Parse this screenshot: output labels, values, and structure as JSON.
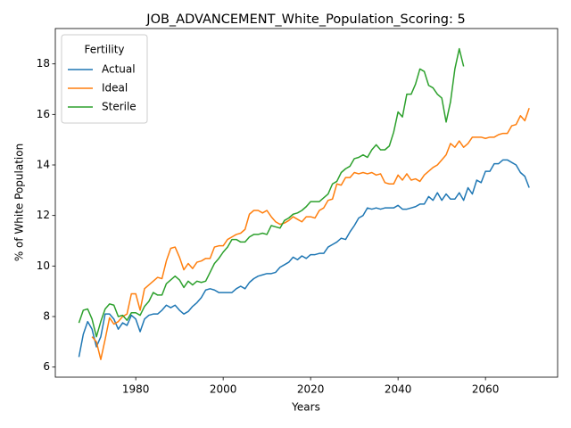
{
  "chart_data": {
    "type": "line",
    "title": "JOB_ADVANCEMENT_White_Population_Scoring: 5",
    "x_label": "Years",
    "y_label": "% of White Population",
    "legend_title": "Fertility",
    "legend_position": "upper left",
    "x": [
      1967,
      1968,
      1969,
      1970,
      1971,
      1972,
      1973,
      1974,
      1975,
      1976,
      1977,
      1978,
      1979,
      1980,
      1981,
      1982,
      1983,
      1984,
      1985,
      1986,
      1987,
      1988,
      1989,
      1990,
      1991,
      1992,
      1993,
      1994,
      1995,
      1996,
      1997,
      1998,
      1999,
      2000,
      2001,
      2002,
      2003,
      2004,
      2005,
      2006,
      2007,
      2008,
      2009,
      2010,
      2011,
      2012,
      2013,
      2014,
      2015,
      2016,
      2017,
      2018,
      2019,
      2020,
      2021,
      2022,
      2023,
      2024,
      2025,
      2026,
      2027,
      2028,
      2029,
      2030,
      2031,
      2032,
      2033,
      2034,
      2035,
      2036,
      2037,
      2038,
      2039,
      2040,
      2041,
      2042,
      2043,
      2044,
      2045,
      2046,
      2047,
      2048,
      2049,
      2050,
      2051,
      2052,
      2053,
      2054,
      2055,
      2056,
      2057,
      2058,
      2059,
      2060,
      2061,
      2062,
      2063,
      2064,
      2065,
      2066,
      2067,
      2068,
      2069,
      2070
    ],
    "series": [
      {
        "name": "Actual",
        "color": "#1f77b4",
        "values": [
          6.4,
          7.3,
          7.8,
          7.5,
          6.8,
          7.2,
          8.1,
          8.1,
          7.9,
          7.5,
          7.75,
          7.65,
          8.05,
          7.9,
          7.4,
          7.9,
          8.05,
          8.1,
          8.1,
          8.25,
          8.45,
          8.35,
          8.45,
          8.25,
          8.1,
          8.2,
          8.4,
          8.55,
          8.75,
          9.05,
          9.1,
          9.05,
          8.95,
          8.95,
          8.95,
          8.95,
          9.1,
          9.2,
          9.1,
          9.35,
          9.5,
          9.6,
          9.65,
          9.7,
          9.7,
          9.75,
          9.95,
          10.05,
          10.15,
          10.35,
          10.25,
          10.4,
          10.3,
          10.45,
          10.45,
          10.5,
          10.5,
          10.75,
          10.85,
          10.95,
          11.1,
          11.05,
          11.35,
          11.6,
          11.9,
          12.0,
          12.3,
          12.25,
          12.3,
          12.25,
          12.3,
          12.3,
          12.3,
          12.4,
          12.25,
          12.25,
          12.3,
          12.35,
          12.45,
          12.45,
          12.75,
          12.6,
          12.9,
          12.6,
          12.85,
          12.65,
          12.65,
          12.9,
          12.6,
          13.1,
          12.85,
          13.4,
          13.3,
          13.75,
          13.75,
          14.05,
          14.05,
          14.2,
          14.2,
          14.1,
          14.0,
          13.7,
          13.55,
          13.1
        ]
      },
      {
        "name": "Ideal",
        "color": "#ff7f0e",
        "values": [
          null,
          null,
          null,
          7.2,
          7.0,
          6.3,
          7.1,
          7.95,
          7.7,
          7.8,
          8.0,
          8.1,
          8.9,
          8.9,
          8.25,
          9.1,
          9.25,
          9.4,
          9.55,
          9.5,
          10.2,
          10.7,
          10.75,
          10.35,
          9.85,
          10.1,
          9.9,
          10.15,
          10.2,
          10.3,
          10.3,
          10.75,
          10.8,
          10.8,
          11.05,
          11.15,
          11.25,
          11.3,
          11.45,
          12.05,
          12.2,
          12.2,
          12.1,
          12.2,
          11.95,
          11.75,
          11.65,
          11.7,
          11.8,
          11.95,
          11.85,
          11.75,
          11.95,
          11.95,
          11.9,
          12.2,
          12.3,
          12.6,
          12.65,
          13.25,
          13.2,
          13.5,
          13.5,
          13.7,
          13.65,
          13.7,
          13.65,
          13.7,
          13.6,
          13.65,
          13.3,
          13.25,
          13.25,
          13.6,
          13.4,
          13.65,
          13.4,
          13.45,
          13.35,
          13.6,
          13.75,
          13.9,
          14.0,
          14.2,
          14.4,
          14.85,
          14.7,
          14.95,
          14.7,
          14.85,
          15.1,
          15.1,
          15.1,
          15.05,
          15.1,
          15.1,
          15.2,
          15.25,
          15.25,
          15.55,
          15.6,
          15.95,
          15.75,
          16.25
        ]
      },
      {
        "name": "Sterile",
        "color": "#2ca02c",
        "values": [
          7.75,
          8.25,
          8.3,
          7.9,
          7.2,
          7.8,
          8.3,
          8.5,
          8.45,
          8.0,
          8.05,
          7.85,
          8.15,
          8.15,
          8.05,
          8.4,
          8.6,
          8.95,
          8.85,
          8.85,
          9.3,
          9.45,
          9.6,
          9.45,
          9.15,
          9.4,
          9.25,
          9.4,
          9.35,
          9.4,
          9.75,
          10.1,
          10.3,
          10.55,
          10.75,
          11.05,
          11.05,
          10.95,
          10.95,
          11.15,
          11.25,
          11.25,
          11.3,
          11.25,
          11.6,
          11.55,
          11.5,
          11.8,
          11.9,
          12.05,
          12.1,
          12.2,
          12.35,
          12.55,
          12.55,
          12.55,
          12.7,
          12.85,
          13.25,
          13.35,
          13.7,
          13.85,
          13.95,
          14.25,
          14.3,
          14.4,
          14.3,
          14.6,
          14.8,
          14.6,
          14.6,
          14.75,
          15.3,
          16.1,
          15.9,
          16.8,
          16.8,
          17.2,
          17.8,
          17.7,
          17.15,
          17.05,
          16.8,
          16.65,
          15.7,
          16.5,
          17.8,
          18.6,
          17.9,
          null,
          null,
          null,
          null,
          null,
          null,
          null,
          null,
          null,
          null,
          null,
          null,
          null,
          null,
          null
        ]
      }
    ],
    "xlim": [
      1961.6,
      2076.5
    ],
    "xticks": [
      1980,
      2000,
      2020,
      2040,
      2060
    ],
    "ylim": [
      5.6,
      19.4
    ],
    "yticks": [
      6,
      8,
      10,
      12,
      14,
      16,
      18
    ],
    "grid": false
  }
}
